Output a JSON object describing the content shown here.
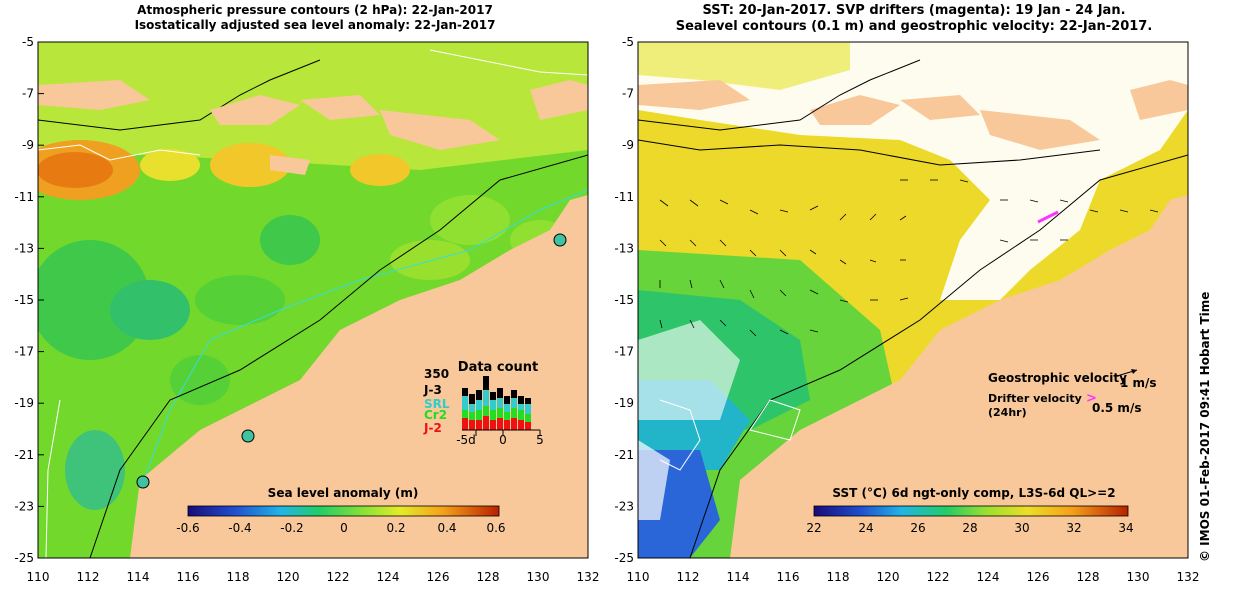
{
  "left_panel": {
    "title_line1": "Atmospheric pressure contours (2 hPa): 22-Jan-2017",
    "title_line2": "Isostatically adjusted sea level anomaly: 22-Jan-2017",
    "colorbar_label": "Sea level anomaly (m)",
    "colorbar_ticks": [
      "-0.6",
      "-0.4",
      "-0.2",
      "0",
      "0.2",
      "0.4",
      "0.6"
    ],
    "data_count": {
      "title": "Data count",
      "max_label": "350",
      "missions": [
        {
          "label": "J-3",
          "color": "#000000"
        },
        {
          "label": "SRL",
          "color": "#33cccc"
        },
        {
          "label": "Cr2",
          "color": "#22dd22"
        },
        {
          "label": "J-2",
          "color": "#ee1111"
        }
      ],
      "axis_labels": [
        "-5d",
        "0",
        "5"
      ]
    }
  },
  "right_panel": {
    "title_line1": "SST: 20-Jan-2017. SVP drifters (magenta): 19 Jan - 24 Jan.",
    "title_line2": "Sealevel contours (0.1 m) and geostrophic velocity: 22-Jan-2017.",
    "geostrophic_label": "Geostrophic velocity",
    "geostrophic_scale": "1 m/s",
    "drifter_label_line1": "Drifter velocity",
    "drifter_label_line2": "(24hr)",
    "drifter_scale": "0.5 m/s",
    "colorbar_label": "SST (°C) 6d ngt-only comp, L3S-6d QL>=2",
    "colorbar_ticks": [
      "22",
      "24",
      "26",
      "28",
      "30",
      "32",
      "34"
    ]
  },
  "axes": {
    "y_ticks": [
      "-5",
      "-7",
      "-9",
      "-11",
      "-13",
      "-15",
      "-17",
      "-19",
      "-21",
      "-23",
      "-25"
    ],
    "x_ticks": [
      "110",
      "112",
      "114",
      "116",
      "118",
      "120",
      "122",
      "124",
      "126",
      "128",
      "130",
      "132"
    ]
  },
  "credit": "© IMOS 01-Feb-2017 09:41 Hobart Time",
  "colors": {
    "land": "#f8c89a",
    "sla_green": "#66dd33",
    "sst_white": "#ffffff",
    "drifter": "#ff33ff"
  }
}
